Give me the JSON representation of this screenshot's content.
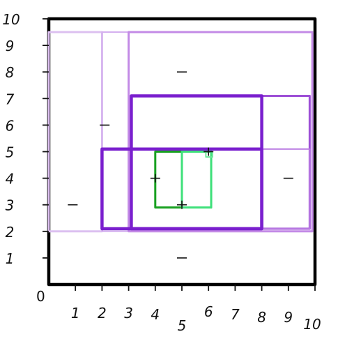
{
  "chart_data": {
    "type": "diagram",
    "xlim": [
      0,
      10
    ],
    "ylim": [
      0,
      10
    ],
    "origin_label": "0",
    "x_ticks": [
      {
        "value": 1,
        "label": "1"
      },
      {
        "value": 2,
        "label": "2"
      },
      {
        "value": 3,
        "label": "3"
      },
      {
        "value": 4,
        "label": "4"
      },
      {
        "value": 5,
        "label": "5"
      },
      {
        "value": 6,
        "label": "6"
      },
      {
        "value": 7,
        "label": "7"
      },
      {
        "value": 8,
        "label": "8"
      },
      {
        "value": 9,
        "label": "9"
      },
      {
        "value": 10,
        "label": "10"
      }
    ],
    "y_ticks": [
      {
        "value": 1,
        "label": "1"
      },
      {
        "value": 2,
        "label": "2"
      },
      {
        "value": 3,
        "label": "3"
      },
      {
        "value": 4,
        "label": "4"
      },
      {
        "value": 5,
        "label": "5"
      },
      {
        "value": 6,
        "label": "6"
      },
      {
        "value": 7,
        "label": "7"
      },
      {
        "value": 8,
        "label": "8"
      },
      {
        "value": 9,
        "label": "9"
      },
      {
        "value": 10,
        "label": "10"
      }
    ],
    "rectangles": [
      {
        "id": "outer",
        "x0": 0,
        "y0": 0,
        "x1": 10,
        "y1": 10,
        "color": "#000000",
        "width": "heavy"
      },
      {
        "id": "left-column",
        "x0": 0,
        "y0": 2,
        "x1": 2,
        "y1": 9.5,
        "color": "#dcc0f0",
        "width": "medium"
      },
      {
        "id": "upper-left-strip",
        "x0": 2,
        "y0": 2,
        "x1": 3,
        "y1": 9.5,
        "color": "#d4b0ef",
        "width": "thin"
      },
      {
        "id": "upper-region",
        "x0": 3,
        "y0": 2,
        "x1": 9.9,
        "y1": 9.5,
        "color": "#c38ae6",
        "width": "medium"
      },
      {
        "id": "right-column",
        "x0": 8,
        "y0": 2.1,
        "x1": 9.8,
        "y1": 7.1,
        "color": "#9d4fd6",
        "width": "medium"
      },
      {
        "id": "upper-middle",
        "x0": 3.1,
        "y0": 2.1,
        "x1": 8,
        "y1": 7.1,
        "color": "#7a1fce",
        "width": "heavy"
      },
      {
        "id": "right-lower",
        "x0": 8,
        "y0": 2.1,
        "x1": 9.8,
        "y1": 5.1,
        "color": "#b878e2",
        "width": "thin"
      },
      {
        "id": "middle-band",
        "x0": 2,
        "y0": 2.1,
        "x1": 8,
        "y1": 5.1,
        "color": "#7a1fce",
        "width": "heavy"
      },
      {
        "id": "green-box",
        "x0": 4,
        "y0": 2.9,
        "x1": 6.1,
        "y1": 5.0,
        "color": "#18a020",
        "width": "medium"
      },
      {
        "id": "light-green-box",
        "x0": 5,
        "y0": 2.9,
        "x1": 6.1,
        "y1": 5.0,
        "color": "#3ee07a",
        "width": "medium"
      },
      {
        "id": "tiny-box",
        "x0": 5.9,
        "y0": 4.8,
        "x1": 6.15,
        "y1": 5.0,
        "color": "#6fe89a",
        "width": "thin"
      }
    ],
    "marks": [
      {
        "id": "mark-left",
        "x": 0.9,
        "y": 3,
        "shape": "dash"
      },
      {
        "id": "mark-strip",
        "x": 2.1,
        "y": 6,
        "shape": "dash"
      },
      {
        "id": "mark-top",
        "x": 5,
        "y": 8,
        "shape": "dash"
      },
      {
        "id": "mark-right",
        "x": 9,
        "y": 4,
        "shape": "dash"
      },
      {
        "id": "mark-bottom",
        "x": 5,
        "y": 1,
        "shape": "dash"
      },
      {
        "id": "mark-green-left",
        "x": 4,
        "y": 4,
        "shape": "cross"
      },
      {
        "id": "mark-green-bottom",
        "x": 5,
        "y": 3,
        "shape": "cross"
      },
      {
        "id": "mark-tiny",
        "x": 6,
        "y": 5,
        "shape": "cross"
      }
    ]
  }
}
